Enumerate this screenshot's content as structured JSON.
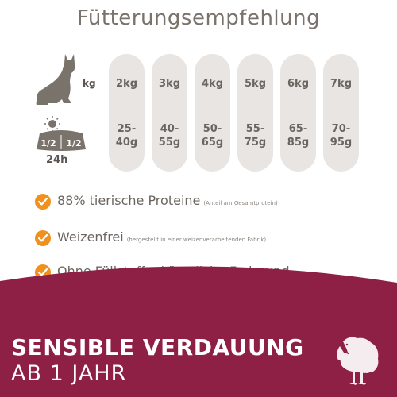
{
  "title": "Fütterungsempfehlung",
  "labels": {
    "weight_unit": "kg",
    "period": "24h",
    "half_left": "1/2",
    "half_right": "1/2"
  },
  "feeding_table": [
    {
      "weight": "2kg",
      "amount": "25-\n40g"
    },
    {
      "weight": "3kg",
      "amount": "40-\n55g"
    },
    {
      "weight": "4kg",
      "amount": "50-\n65g"
    },
    {
      "weight": "5kg",
      "amount": "55-\n75g"
    },
    {
      "weight": "6kg",
      "amount": "65-\n85g"
    },
    {
      "weight": "7kg",
      "amount": "70-\n95g"
    }
  ],
  "features": [
    {
      "text": "88% tierische Proteine",
      "note": "(Anteil am Gesamtprotein)"
    },
    {
      "text": "Weizenfrei",
      "note": "(hergestellt in einer weizenverarbeitenden Fabrik)"
    },
    {
      "text": "Ohne Füllstoffe, künstliche Farb- und Aromastoffe & GVO",
      "note": ""
    }
  ],
  "banner": {
    "headline": "SENSIBLE VERDAUUNG",
    "subline": "AB 1 JAHR"
  },
  "icons": {
    "cat": "cat-icon",
    "day": "sun-moon-bowl-icon",
    "check": "check-icon",
    "turkey": "turkey-icon"
  },
  "colors": {
    "banner": "#8e1f45",
    "accent_check": "#f0901e",
    "pill": "#e8e5e3",
    "text": "#6b655f"
  }
}
